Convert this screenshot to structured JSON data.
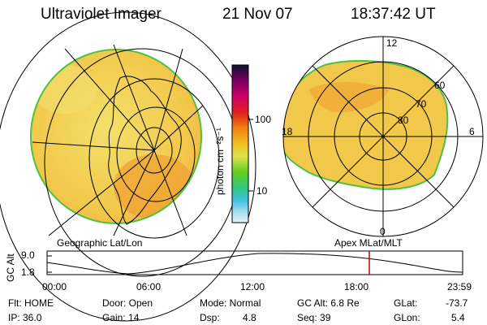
{
  "header": {
    "instrument": "Ultraviolet Imager",
    "date": "21 Nov 07",
    "time": "18:37:42 UT"
  },
  "colorbar": {
    "unit_label": "photon cm⁻²s⁻¹",
    "ticks": [
      "100",
      "10"
    ],
    "colors": [
      "#101030",
      "#7a0060",
      "#d0006a",
      "#e02020",
      "#f08010",
      "#f0c020",
      "#e0e050",
      "#60d020",
      "#30c880",
      "#40c0e0",
      "#b0e0f0",
      "#e8f0f4"
    ]
  },
  "left_panel": {
    "caption": "Geographic Lat/Lon"
  },
  "right_panel": {
    "caption": "Apex MLat/MLT",
    "mlt_labels": {
      "top": "12",
      "left": "18",
      "right": "6",
      "bottom": "0"
    },
    "lat_labels": [
      "60",
      "70",
      "80"
    ]
  },
  "altitude_plot": {
    "axis_title": "GC Alt",
    "y_ticks": [
      "9.0",
      "1.8"
    ],
    "x_ticks": [
      "00:00",
      "06:00",
      "12:00",
      "18:00",
      "23:59"
    ],
    "marker_time": "18:37"
  },
  "status": {
    "flt": "Flt: HOME",
    "ip": "IP: 36.0",
    "door": "Door: Open",
    "gain": "Gain: 14",
    "mode": "Mode: Normal",
    "dsp_label": "Dsp:",
    "dsp_value": "4.8",
    "gc_alt": "GC Alt: 6.8 Re",
    "seq": "Seq: 39",
    "glat_label": "GLat:",
    "glat_value": "-73.7",
    "glon_label": "GLon:",
    "glon_value": "5.4"
  }
}
